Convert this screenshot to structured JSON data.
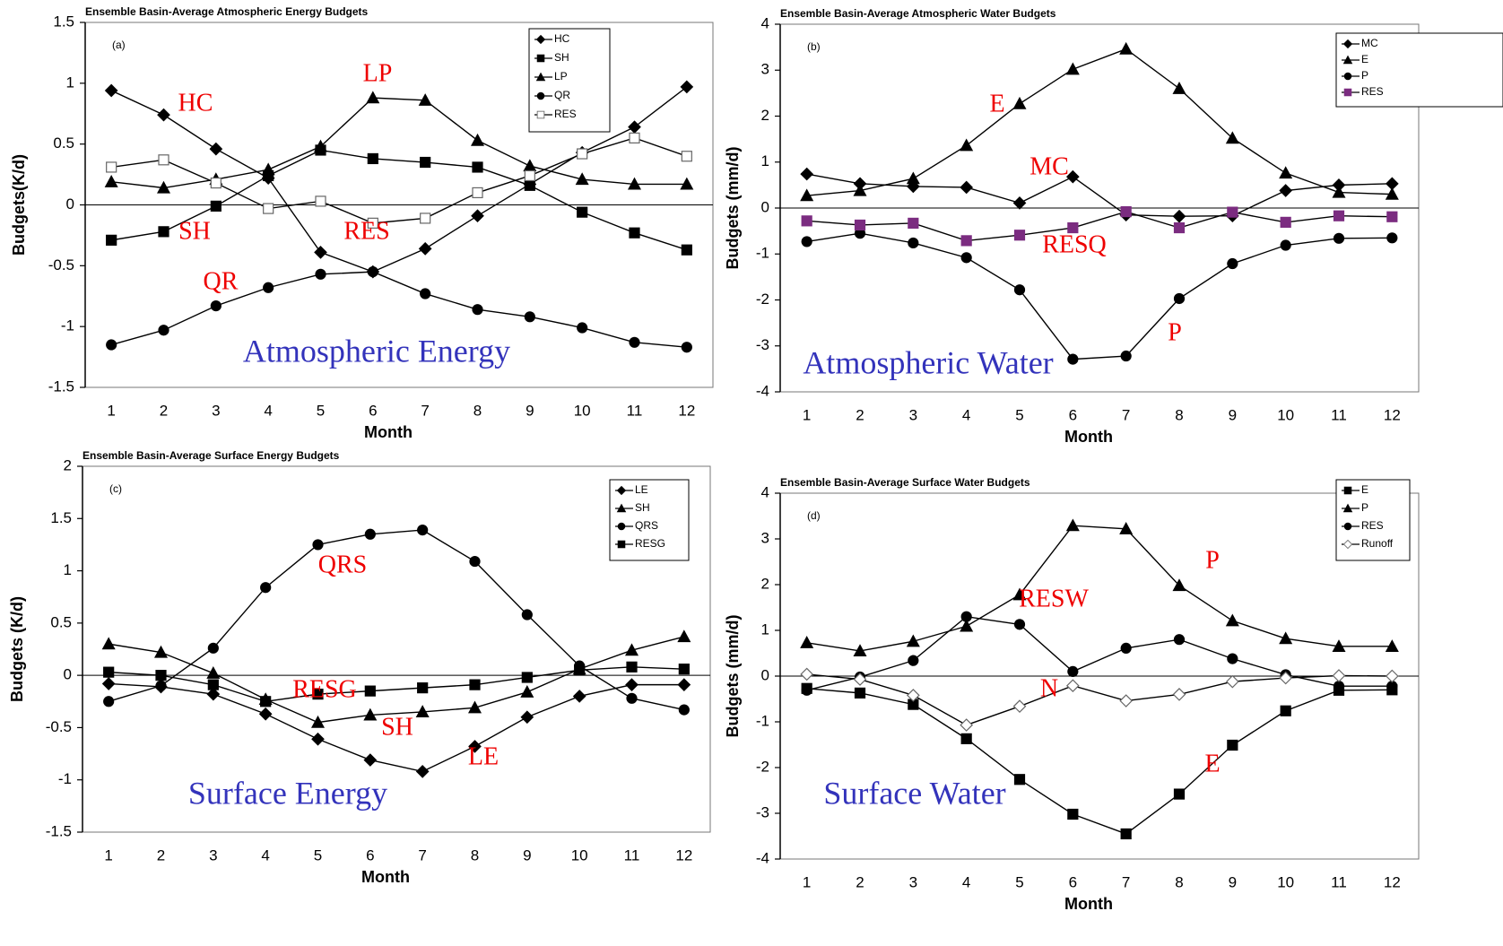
{
  "chart_data": [
    {
      "type": "line",
      "title": "Ensemble Basin-Average Atmospheric Energy Budgets",
      "panel": "(a)",
      "y_label": "Budgets(K/d)",
      "x_label": "Month",
      "categories": [
        "1",
        "2",
        "3",
        "4",
        "5",
        "6",
        "7",
        "8",
        "9",
        "10",
        "11",
        "12"
      ],
      "ylim": [
        -1.5,
        1.5
      ],
      "yticks": [
        1.5,
        1,
        0.5,
        0,
        -0.5,
        -1,
        -1.5
      ],
      "series": [
        {
          "name": "HC",
          "marker": "diamond",
          "color": "#000000",
          "values": [
            0.94,
            0.74,
            0.46,
            0.22,
            -0.39,
            -0.55,
            -0.36,
            -0.09,
            0.17,
            0.43,
            0.64,
            0.97
          ]
        },
        {
          "name": "SH",
          "marker": "square",
          "color": "#000000",
          "values": [
            -0.29,
            -0.22,
            -0.01,
            0.24,
            0.45,
            0.38,
            0.35,
            0.31,
            0.16,
            -0.06,
            -0.23,
            -0.37
          ]
        },
        {
          "name": "LP",
          "marker": "triangle",
          "color": "#000000",
          "values": [
            0.19,
            0.14,
            0.21,
            0.29,
            0.48,
            0.88,
            0.86,
            0.53,
            0.32,
            0.21,
            0.17,
            0.17
          ]
        },
        {
          "name": "QR",
          "marker": "circle",
          "color": "#000000",
          "values": [
            -1.15,
            -1.03,
            -0.83,
            -0.68,
            -0.57,
            -0.55,
            -0.73,
            -0.86,
            -0.92,
            -1.01,
            -1.13,
            -1.17
          ]
        },
        {
          "name": "RES",
          "marker": "open-square",
          "color": "#888888",
          "values": [
            0.31,
            0.37,
            0.18,
            -0.03,
            0.03,
            -0.15,
            -0.11,
            0.1,
            0.24,
            0.42,
            0.55,
            0.4
          ]
        }
      ],
      "annotations": [
        {
          "text": "HC",
          "color": "#ee0000"
        },
        {
          "text": "SH",
          "color": "#ee0000"
        },
        {
          "text": "QR",
          "color": "#ee0000"
        },
        {
          "text": "LP",
          "color": "#ee0000"
        },
        {
          "text": "RES",
          "color": "#ee0000"
        },
        {
          "text": "Atmospheric Energy",
          "color": "#3333bb"
        }
      ]
    },
    {
      "type": "line",
      "title": "Ensemble Basin-Average Atmospheric Water Budgets",
      "panel": "(b)",
      "y_label": "Budgets (mm/d)",
      "x_label": "Month",
      "categories": [
        "1",
        "2",
        "3",
        "4",
        "5",
        "6",
        "7",
        "8",
        "9",
        "10",
        "11",
        "12"
      ],
      "ylim": [
        -4,
        4
      ],
      "yticks": [
        4,
        3,
        2,
        1,
        0,
        -1,
        -2,
        -3,
        -4
      ],
      "series": [
        {
          "name": "MC",
          "marker": "diamond",
          "color": "#000000",
          "values": [
            0.74,
            0.53,
            0.47,
            0.45,
            0.11,
            0.68,
            -0.15,
            -0.18,
            -0.17,
            0.38,
            0.5,
            0.53
          ]
        },
        {
          "name": "E",
          "marker": "triangle",
          "color": "#000000",
          "values": [
            0.27,
            0.38,
            0.64,
            1.36,
            2.27,
            3.02,
            3.46,
            2.6,
            1.52,
            0.76,
            0.34,
            0.3
          ]
        },
        {
          "name": "P",
          "marker": "circle",
          "color": "#000000",
          "values": [
            -0.73,
            -0.55,
            -0.76,
            -1.08,
            -1.78,
            -3.29,
            -3.22,
            -1.97,
            -1.21,
            -0.81,
            -0.66,
            -0.65
          ]
        },
        {
          "name": "RES",
          "marker": "square",
          "color": "#000000",
          "marker_color": "#7b2c80",
          "values": [
            -0.28,
            -0.37,
            -0.33,
            -0.71,
            -0.59,
            -0.43,
            -0.08,
            -0.43,
            -0.09,
            -0.31,
            -0.17,
            -0.19
          ]
        }
      ],
      "annotations": [
        {
          "text": "E",
          "color": "#ee0000"
        },
        {
          "text": "MC",
          "color": "#ee0000"
        },
        {
          "text": "RESQ",
          "color": "#ee0000"
        },
        {
          "text": "P",
          "color": "#ee0000"
        },
        {
          "text": "Atmospheric Water",
          "color": "#3333bb"
        }
      ]
    },
    {
      "type": "line",
      "title": "Ensemble Basin-Average Surface Energy Budgets",
      "panel": "(c)",
      "y_label": "Budgets (K/d)",
      "x_label": "Month",
      "categories": [
        "1",
        "2",
        "3",
        "4",
        "5",
        "6",
        "7",
        "8",
        "9",
        "10",
        "11",
        "12"
      ],
      "ylim": [
        -1.5,
        2
      ],
      "yticks": [
        2,
        1.5,
        1,
        0.5,
        0,
        -0.5,
        -1,
        -1.5
      ],
      "series": [
        {
          "name": "LE",
          "marker": "diamond",
          "color": "#000000",
          "values": [
            -0.08,
            -0.11,
            -0.18,
            -0.37,
            -0.61,
            -0.81,
            -0.92,
            -0.68,
            -0.4,
            -0.2,
            -0.09,
            -0.09
          ]
        },
        {
          "name": "SH",
          "marker": "triangle",
          "color": "#000000",
          "values": [
            0.3,
            0.22,
            0.02,
            -0.23,
            -0.45,
            -0.38,
            -0.35,
            -0.31,
            -0.16,
            0.06,
            0.24,
            0.37
          ]
        },
        {
          "name": "QRS",
          "marker": "circle",
          "color": "#000000",
          "values": [
            -0.25,
            -0.1,
            0.26,
            0.84,
            1.25,
            1.35,
            1.39,
            1.09,
            0.58,
            0.09,
            -0.22,
            -0.33
          ]
        },
        {
          "name": "RESG",
          "marker": "square",
          "color": "#000000",
          "values": [
            0.03,
            0.0,
            -0.09,
            -0.25,
            -0.18,
            -0.15,
            -0.12,
            -0.09,
            -0.02,
            0.05,
            0.08,
            0.06
          ]
        }
      ],
      "annotations": [
        {
          "text": "QRS",
          "color": "#ee0000"
        },
        {
          "text": "RESG",
          "color": "#ee0000"
        },
        {
          "text": "SH",
          "color": "#ee0000"
        },
        {
          "text": "LE",
          "color": "#ee0000"
        },
        {
          "text": "Surface Energy",
          "color": "#3333bb"
        }
      ]
    },
    {
      "type": "line",
      "title": "Ensemble Basin-Average Surface Water Budgets",
      "panel": "(d)",
      "y_label": "Budgets (mm/d)",
      "x_label": "Month",
      "categories": [
        "1",
        "2",
        "3",
        "4",
        "5",
        "6",
        "7",
        "8",
        "9",
        "10",
        "11",
        "12"
      ],
      "ylim": [
        -4,
        4
      ],
      "yticks": [
        4,
        3,
        2,
        1,
        0,
        -1,
        -2,
        -3,
        -4
      ],
      "series": [
        {
          "name": "E",
          "marker": "square",
          "color": "#000000",
          "values": [
            -0.27,
            -0.37,
            -0.62,
            -1.37,
            -2.26,
            -3.02,
            -3.45,
            -2.58,
            -1.51,
            -0.76,
            -0.31,
            -0.3
          ]
        },
        {
          "name": "P",
          "marker": "triangle",
          "color": "#000000",
          "values": [
            0.73,
            0.55,
            0.76,
            1.09,
            1.78,
            3.29,
            3.22,
            1.98,
            1.21,
            0.82,
            0.65,
            0.65
          ]
        },
        {
          "name": "RES",
          "marker": "circle",
          "color": "#000000",
          "values": [
            -0.31,
            -0.02,
            0.34,
            1.3,
            1.13,
            0.1,
            0.61,
            0.8,
            0.38,
            0.03,
            -0.22,
            -0.22
          ]
        },
        {
          "name": "Runoff",
          "marker": "open-diamond",
          "color": "#888888",
          "values": [
            0.04,
            -0.07,
            -0.42,
            -1.07,
            -0.66,
            -0.21,
            -0.54,
            -0.4,
            -0.12,
            -0.04,
            0.01,
            0.0
          ]
        }
      ],
      "annotations": [
        {
          "text": "P",
          "color": "#ee0000"
        },
        {
          "text": "RESW",
          "color": "#ee0000"
        },
        {
          "text": "N",
          "color": "#ee0000"
        },
        {
          "text": "E",
          "color": "#ee0000"
        },
        {
          "text": "Surface Water",
          "color": "#3333bb"
        }
      ]
    }
  ]
}
